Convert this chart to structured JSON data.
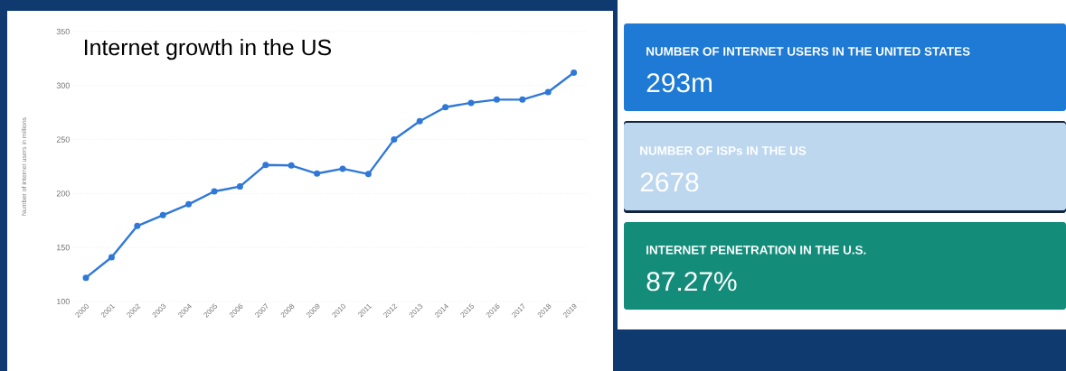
{
  "chart_data": [
    {
      "type": "line",
      "title": "Internet growth in the US",
      "ylabel": "Number of internet users in millions",
      "categories": [
        "2000",
        "2001",
        "2002",
        "2003",
        "2004",
        "2005",
        "2006",
        "2007",
        "2008",
        "2009",
        "2010",
        "2011",
        "2012",
        "2013",
        "2014",
        "2015",
        "2016",
        "2017",
        "2018",
        "2019"
      ],
      "values": [
        122,
        141,
        170,
        180,
        190,
        202,
        206.5,
        226.5,
        226,
        218.5,
        223,
        218,
        250,
        267,
        280,
        284,
        287,
        287,
        294,
        312
      ],
      "color": "#2f78d8",
      "ylim": [
        100,
        350
      ],
      "yticks": [
        100,
        150,
        200,
        250,
        300,
        350
      ],
      "grid": "y",
      "marker": "circle",
      "line_style": "solid"
    },
    {
      "type": "other",
      "annotations": [
        "NUMBER OF INTERNET USERS IN THE UNITED STATES",
        "293m",
        "NUMBER OF ISPs IN THE US",
        "2678",
        "INTERNET PENETRATION IN THE U.S.",
        "87.27%"
      ]
    }
  ]
}
